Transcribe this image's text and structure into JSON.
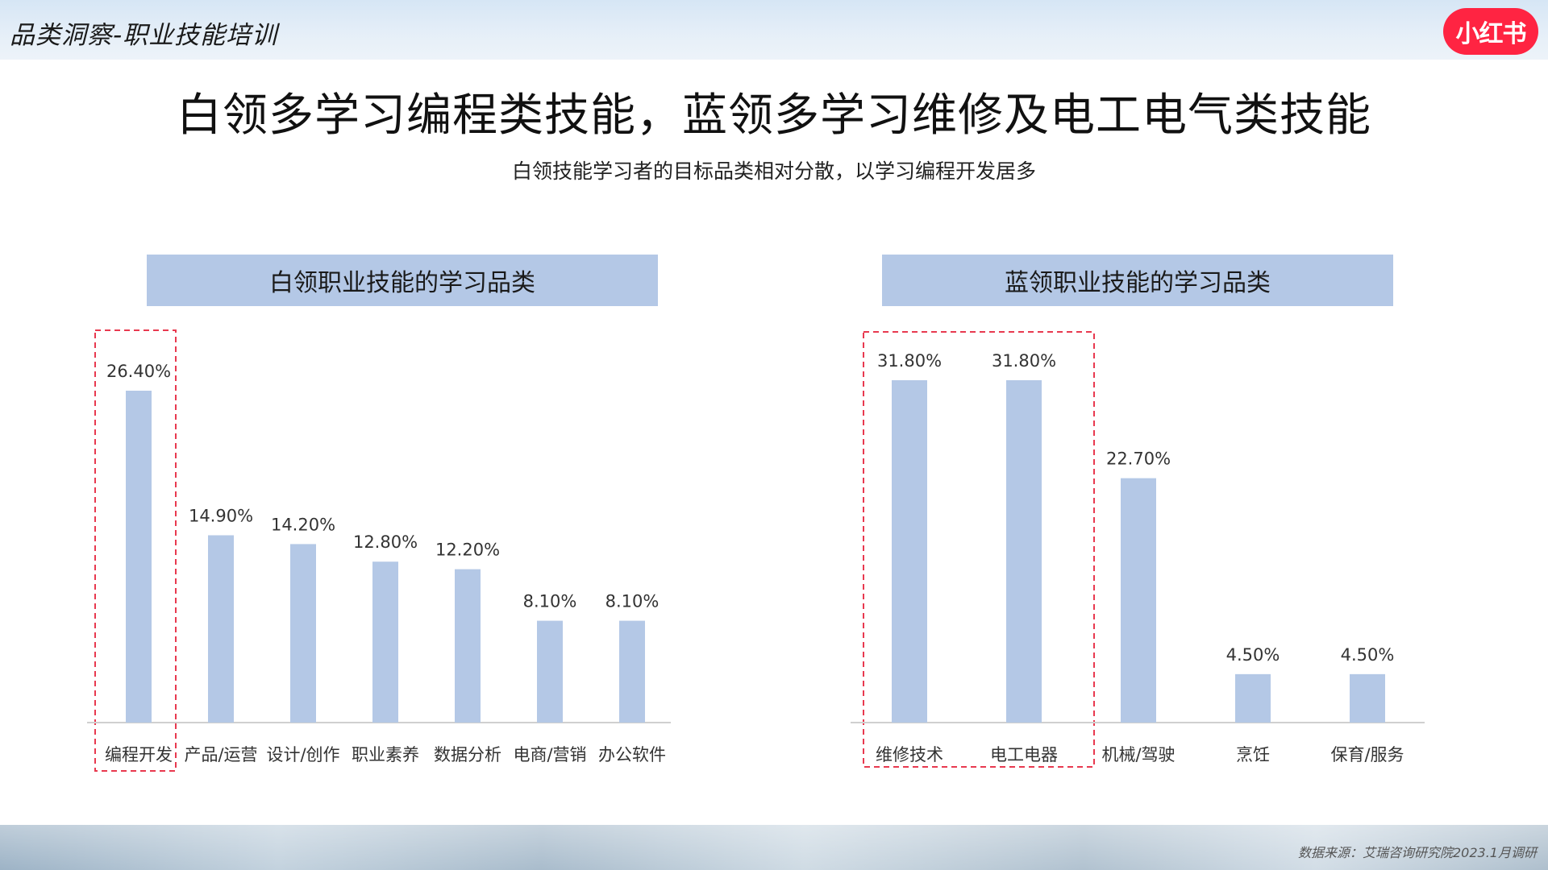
{
  "header": {
    "section_label": "品类洞察-职业技能培训",
    "brand_logo_text": "小红书",
    "brand_color": "#ff2442"
  },
  "main_title": "白领多学习编程类技能，蓝领多学习维修及电工电气类技能",
  "subtitle": "白领技能学习者的目标品类相对分散，以学习编程开发居多",
  "footer": {
    "source": "数据来源：艾瑞咨询研究院2023.1月调研"
  },
  "colors": {
    "bar": "#b4c8e6",
    "highlight_box": "#e8394f",
    "axis": "#d0d0d0"
  },
  "chart_data": [
    {
      "type": "bar",
      "title": "白领职业技能的学习品类",
      "categories": [
        "编程开发",
        "产品/运营",
        "设计/创作",
        "职业素养",
        "数据分析",
        "电商/营销",
        "办公软件"
      ],
      "values": [
        26.4,
        14.9,
        14.2,
        12.8,
        12.2,
        8.1,
        8.1
      ],
      "value_labels": [
        "26.40%",
        "14.90%",
        "14.20%",
        "12.80%",
        "12.20%",
        "8.10%",
        "8.10%"
      ],
      "highlighted": [
        "编程开发"
      ],
      "ylim": [
        0,
        27
      ],
      "grid": false
    },
    {
      "type": "bar",
      "title": "蓝领职业技能的学习品类",
      "categories": [
        "维修技术",
        "电工电器",
        "机械/驾驶",
        "烹饪",
        "保育/服务"
      ],
      "values": [
        31.8,
        31.8,
        22.7,
        4.5,
        4.5
      ],
      "value_labels": [
        "31.80%",
        "31.80%",
        "22.70%",
        "4.50%",
        "4.50%"
      ],
      "highlighted": [
        "维修技术",
        "电工电器"
      ],
      "ylim": [
        0,
        32
      ],
      "grid": false
    }
  ]
}
